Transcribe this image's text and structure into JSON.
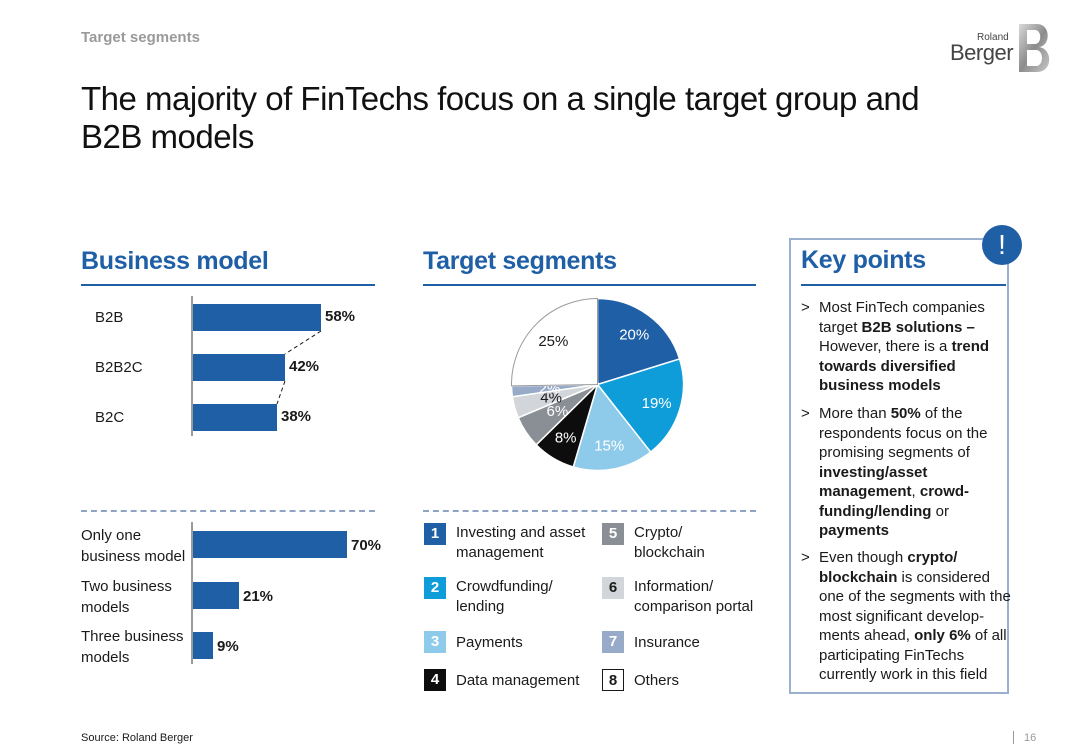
{
  "header": {
    "crumb": "Target segments",
    "title": "The majority of FinTechs focus on a single target group and B2B models",
    "logo_small": "Roland",
    "logo_large": "Berger"
  },
  "sections": {
    "business_model": "Business model",
    "target_segments": "Target segments",
    "key_points": "Key points",
    "key_points_badge": "!"
  },
  "chart_data": [
    {
      "type": "bar",
      "orientation": "horizontal",
      "categories": [
        "B2B",
        "B2B2C",
        "B2C"
      ],
      "values": [
        58,
        42,
        38
      ],
      "value_labels": [
        "58%",
        "42%",
        "38%"
      ],
      "unit": "%",
      "xlim": [
        0,
        100
      ]
    },
    {
      "type": "bar",
      "orientation": "horizontal",
      "categories": [
        "Only one business model",
        "Two business models",
        "Three business models"
      ],
      "category_lines": [
        [
          "Only one",
          "business model"
        ],
        [
          "Two business",
          "models"
        ],
        [
          "Three business",
          "models"
        ]
      ],
      "values": [
        70,
        21,
        9
      ],
      "value_labels": [
        "70%",
        "21%",
        "9%"
      ],
      "unit": "%",
      "xlim": [
        0,
        100
      ]
    },
    {
      "type": "pie",
      "slices": [
        {
          "segment": "1",
          "value": 20,
          "label": "20%",
          "color": "#1f5fa6"
        },
        {
          "segment": "2",
          "value": 19,
          "label": "19%",
          "color": "#0f9dd9"
        },
        {
          "segment": "3",
          "value": 15,
          "label": "15%",
          "color": "#8ecbea"
        },
        {
          "segment": "4",
          "value": 8,
          "label": "8%",
          "color": "#0d0d0d"
        },
        {
          "segment": "5",
          "value": 6,
          "label": "6%",
          "color": "#8a8f96"
        },
        {
          "segment": "6",
          "value": 4,
          "label": "4%",
          "color": "#d2d5d9"
        },
        {
          "segment": "7",
          "value": 2,
          "label": "2%",
          "color": "#97aac8"
        },
        {
          "segment": "8",
          "value": 25,
          "label": "25%",
          "color": "#ffffff"
        }
      ]
    }
  ],
  "legend": [
    {
      "num": "1",
      "lines": [
        "Investing and asset",
        "management"
      ],
      "bg": "#1f5fa6",
      "fg": "#ffffff"
    },
    {
      "num": "5",
      "lines": [
        "Crypto/",
        "blockchain"
      ],
      "bg": "#8a8f96",
      "fg": "#ffffff"
    },
    {
      "num": "2",
      "lines": [
        "Crowdfunding/",
        "lending"
      ],
      "bg": "#0f9dd9",
      "fg": "#ffffff"
    },
    {
      "num": "6",
      "lines": [
        "Information/",
        "comparison portal"
      ],
      "bg": "#d2d5d9",
      "fg": "#1a1a1a"
    },
    {
      "num": "3",
      "lines": [
        "Payments"
      ],
      "bg": "#8ecbea",
      "fg": "#ffffff"
    },
    {
      "num": "7",
      "lines": [
        "Insurance"
      ],
      "bg": "#97aac8",
      "fg": "#ffffff"
    },
    {
      "num": "4",
      "lines": [
        "Data management"
      ],
      "bg": "#0d0d0d",
      "fg": "#ffffff"
    },
    {
      "num": "8",
      "lines": [
        "Others"
      ],
      "bg": "#ffffff",
      "fg": "#1a1a1a"
    }
  ],
  "key_points": [
    {
      "runs": [
        [
          "Most FinTech companies target ",
          false
        ],
        [
          "B2B solutions –",
          true
        ],
        [
          " However, there is a ",
          false
        ],
        [
          "trend towards diversified business models",
          true
        ]
      ]
    },
    {
      "runs": [
        [
          "More than ",
          false
        ],
        [
          "50%",
          true
        ],
        [
          " of the respondents focus on the promising segments of ",
          false
        ],
        [
          "investing/asset management",
          true
        ],
        [
          ", ",
          false
        ],
        [
          "crowd-funding/lending",
          true
        ],
        [
          " or ",
          false
        ],
        [
          "payments",
          true
        ]
      ]
    },
    {
      "runs": [
        [
          "Even though ",
          false
        ],
        [
          "crypto/ blockchain",
          true
        ],
        [
          " is considered one of the segments with the most significant develop-ments ahead, ",
          false
        ],
        [
          "only 6%",
          true
        ],
        [
          " of all participating FinTechs currently work in this field",
          false
        ]
      ]
    }
  ],
  "footer": {
    "source": "Source: Roland Berger",
    "page": "16"
  }
}
